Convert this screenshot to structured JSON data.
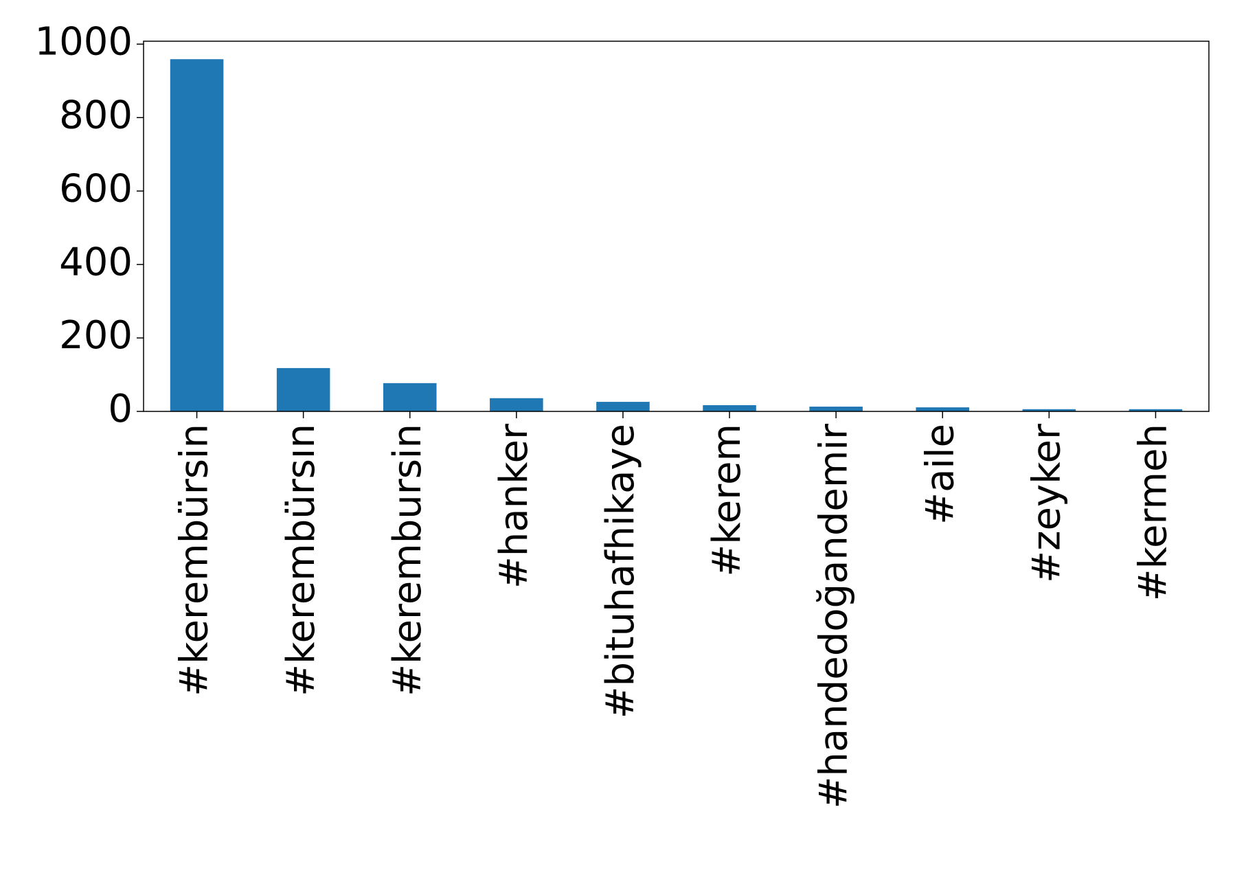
{
  "chart_data": {
    "type": "bar",
    "categories": [
      "#kerembürsin",
      "#kerembürsın",
      "#kerembursin",
      "#hanker",
      "#bituhafhikaye",
      "#kerem",
      "#handedoğandemir",
      "#aile",
      "#zeyker",
      "#kermeh"
    ],
    "values": [
      959,
      118,
      77,
      36,
      26,
      17,
      13,
      11,
      6,
      6
    ],
    "color": "#1f77b4",
    "ylim": [
      0,
      1008
    ],
    "yticks": [
      0,
      200,
      400,
      600,
      800,
      1000
    ],
    "grid": false
  }
}
